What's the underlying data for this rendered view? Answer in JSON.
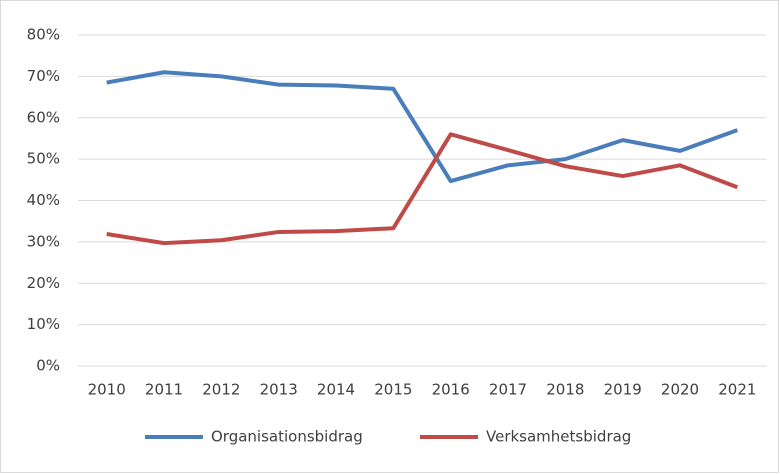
{
  "chart_data": {
    "type": "line",
    "categories": [
      "2010",
      "2011",
      "2012",
      "2013",
      "2014",
      "2015",
      "2016",
      "2017",
      "2018",
      "2019",
      "2020",
      "2021"
    ],
    "series": [
      {
        "name": "Organisationsbidrag",
        "color": "#4a7ebb",
        "values": [
          68.5,
          71,
          70,
          68,
          67.8,
          67,
          44.7,
          48.5,
          50,
          54.6,
          52,
          57
        ]
      },
      {
        "name": "Verksamhetsbidrag",
        "color": "#be4b48",
        "values": [
          31.9,
          29.7,
          30.4,
          32.4,
          32.6,
          33.3,
          56,
          52.2,
          48.3,
          45.9,
          48.5,
          43.2
        ]
      }
    ],
    "ylim": [
      0,
      80
    ],
    "yticks": [
      {
        "value": 0,
        "label": "0%"
      },
      {
        "value": 10,
        "label": "10%"
      },
      {
        "value": 20,
        "label": "20%"
      },
      {
        "value": 30,
        "label": "30%"
      },
      {
        "value": 40,
        "label": "40%"
      },
      {
        "value": 50,
        "label": "50%"
      },
      {
        "value": 60,
        "label": "60%"
      },
      {
        "value": 70,
        "label": "70%"
      },
      {
        "value": 80,
        "label": "80%"
      }
    ],
    "grid": true,
    "legend": "bottom"
  }
}
